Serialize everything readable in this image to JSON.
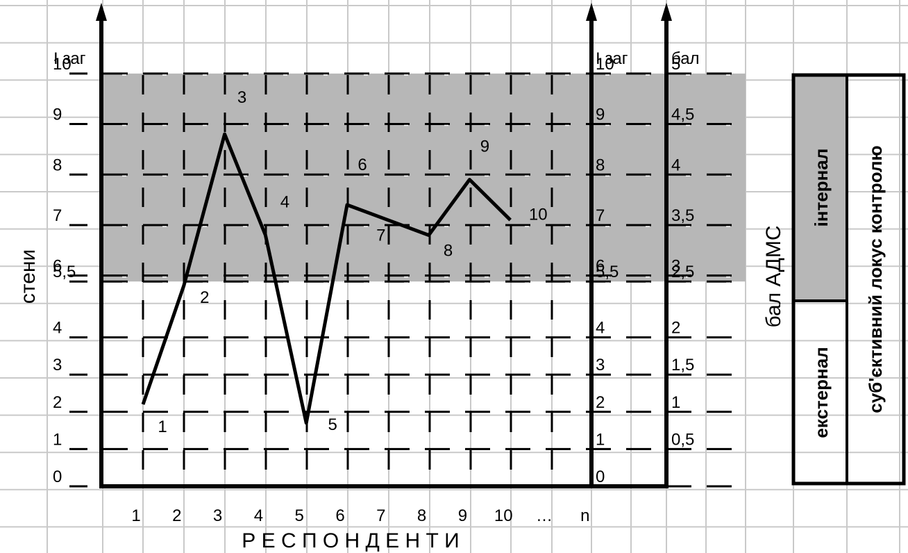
{
  "colors": {
    "zone": "#b7b7b7",
    "line": "#000000",
    "grid": "#c9c9c9",
    "accent": "#ffffff"
  },
  "chart_data": {
    "type": "line",
    "x": [
      "1",
      "2",
      "3",
      "4",
      "5",
      "6",
      "7",
      "8",
      "9",
      "10"
    ],
    "x_tick_labels": [
      "1",
      "2",
      "3",
      "4",
      "5",
      "6",
      "7",
      "8",
      "9",
      "10",
      "…",
      "n"
    ],
    "y_left_ticks": [
      "0",
      "1",
      "2",
      "3",
      "4",
      "5,5",
      "6",
      "7",
      "8",
      "9",
      "10"
    ],
    "y_right_ticks_stens": [
      "0",
      "1",
      "2",
      "3",
      "4",
      "5,5",
      "6",
      "7",
      "8",
      "9",
      "10"
    ],
    "y_right_ticks_points": [
      "0,5",
      "1",
      "1,5",
      "2",
      "2,5",
      "3",
      "3,5",
      "4",
      "4,5",
      "5"
    ],
    "values": [
      2.2,
      5.8,
      8.8,
      6.8,
      1.7,
      7.4,
      7.1,
      6.8,
      7.9,
      7.1
    ],
    "point_labels": [
      "1",
      "2",
      "3",
      "4",
      "5",
      "6",
      "7",
      "8",
      "9",
      "10"
    ],
    "internal_zone": [
      5.5,
      10
    ],
    "xlabel": "Р Е С П О Н Д Е Н Т И",
    "ylabel_left": "стени",
    "ylabel_right": "бал АДМС",
    "axis_title_left": "І заг",
    "axis_title_right_1": "І заг",
    "axis_title_right_2": "бал",
    "grid": true
  },
  "legend": {
    "title": "суб'єктивний локус контролю",
    "internal": "інтернал",
    "external": "екстернал"
  }
}
